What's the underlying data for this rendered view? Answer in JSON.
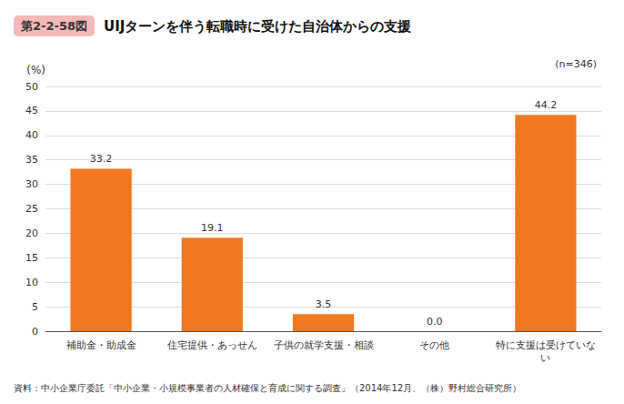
{
  "chart_data": {
    "type": "bar",
    "title": "UIJターンを伴う転職時に受けた自治体からの支援",
    "annotations": [
      "第2-2-58図",
      "(n=346)",
      "資料：中小企業庁委託「中小企業・小規模事業者の人材確保と育成に関する調査」（2014年12月、（株）野村総合研究所）"
    ],
    "ylabel": "(%)",
    "categories": [
      "補助金・助成金",
      "住宅提供・あっせん",
      "子供の就学支援・相談",
      "その他",
      "特に支援は受けていない"
    ],
    "values": [
      33.2,
      19.1,
      3.5,
      0.0,
      44.2
    ],
    "value_labels": [
      "33.2",
      "19.1",
      "3.5",
      "0.0",
      "44.2"
    ],
    "data_labels": true,
    "color": "#F07820",
    "ylim": [
      0,
      50
    ],
    "yticks": [
      0,
      5,
      10,
      15,
      20,
      25,
      30,
      35,
      40,
      45,
      50
    ],
    "grid": true
  }
}
